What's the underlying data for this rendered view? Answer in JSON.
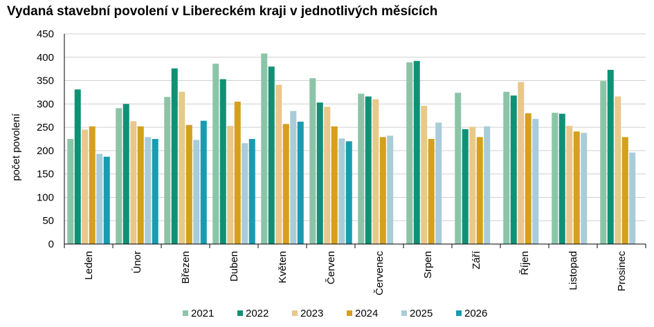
{
  "chart_data": {
    "type": "bar",
    "title": "Vydaná stavební povolení v Libereckém kraji v jednotlivých měsících",
    "xlabel": "",
    "ylabel": "počet povolení",
    "ylim": [
      0,
      450
    ],
    "yticks": [
      0,
      50,
      100,
      150,
      200,
      250,
      300,
      350,
      400,
      450
    ],
    "grid": true,
    "legend_position": "bottom",
    "categories": [
      "Leden",
      "Únor",
      "Březen",
      "Duben",
      "Květen",
      "Červen",
      "Červenec",
      "Srpen",
      "Září",
      "Říjen",
      "Listopad",
      "Prosinec"
    ],
    "series": [
      {
        "name": "2021",
        "color": "#8cc4a8",
        "values": [
          225,
          291,
          315,
          386,
          408,
          355,
          322,
          389,
          324,
          326,
          281,
          349
        ]
      },
      {
        "name": "2022",
        "color": "#0f9175",
        "values": [
          331,
          300,
          376,
          353,
          380,
          303,
          316,
          392,
          246,
          318,
          279,
          373
        ]
      },
      {
        "name": "2023",
        "color": "#e9c88a",
        "values": [
          245,
          263,
          326,
          253,
          341,
          294,
          310,
          296,
          251,
          347,
          253,
          316
        ]
      },
      {
        "name": "2024",
        "color": "#d4a01e",
        "values": [
          252,
          252,
          255,
          305,
          257,
          252,
          229,
          225,
          229,
          280,
          241,
          229
        ]
      },
      {
        "name": "2025",
        "color": "#a9ccd9",
        "values": [
          193,
          229,
          223,
          216,
          285,
          226,
          232,
          260,
          252,
          268,
          238,
          196
        ]
      },
      {
        "name": "2026",
        "color": "#1a9bb0",
        "values": [
          187,
          225,
          264,
          225,
          262,
          220,
          null,
          null,
          null,
          null,
          null,
          null
        ]
      }
    ]
  }
}
